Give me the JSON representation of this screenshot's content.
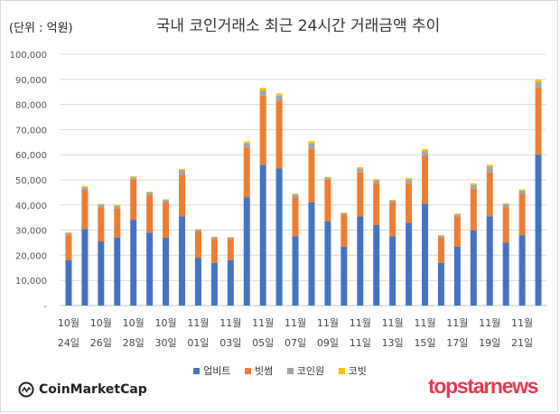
{
  "header": {
    "unit_label": "(단위 : 억원)",
    "title": "국내 코인거래소 최근 24시간 거래금액 추이"
  },
  "chart_data": {
    "type": "bar",
    "stacked": true,
    "title": "국내 코인거래소 최근 24시간 거래금액 추이",
    "unit": "(단위 : 억원)",
    "ylim": [
      0,
      100000
    ],
    "y_ticks": [
      "-",
      "10,000",
      "20,000",
      "30,000",
      "40,000",
      "50,000",
      "60,000",
      "70,000",
      "80,000",
      "90,000",
      "100,000"
    ],
    "categories": [
      "10월 24일",
      "10월 25일",
      "10월 26일",
      "10월 27일",
      "10월 28일",
      "10월 29일",
      "10월 30일",
      "10월 31일",
      "11월 01일",
      "11월 02일",
      "11월 03일",
      "11월 04일",
      "11월 05일",
      "11월 06일",
      "11월 07일",
      "11월 08일",
      "11월 09일",
      "11월 10일",
      "11월 11일",
      "11월 12일",
      "11월 13일",
      "11월 14일",
      "11월 15일",
      "11월 16일",
      "11월 17일",
      "11월 18일",
      "11월 19일",
      "11월 20일",
      "11월 21일",
      "11월 22일"
    ],
    "x_labels": [
      {
        "month": "10월",
        "day": "24일"
      },
      {
        "month": "10월",
        "day": "26일"
      },
      {
        "month": "10월",
        "day": "28일"
      },
      {
        "month": "10월",
        "day": "30일"
      },
      {
        "month": "11월",
        "day": "01일"
      },
      {
        "month": "11월",
        "day": "03일"
      },
      {
        "month": "11월",
        "day": "05일"
      },
      {
        "month": "11월",
        "day": "07일"
      },
      {
        "month": "11월",
        "day": "09일"
      },
      {
        "month": "11월",
        "day": "11일"
      },
      {
        "month": "11월",
        "day": "13일"
      },
      {
        "month": "11월",
        "day": "15일"
      },
      {
        "month": "11월",
        "day": "17일"
      },
      {
        "month": "11월",
        "day": "19일"
      },
      {
        "month": "11월",
        "day": "21일"
      }
    ],
    "series": [
      {
        "name": "업비트",
        "color": "#4472c4",
        "values": [
          18000,
          30500,
          25500,
          27000,
          34000,
          29000,
          27000,
          35500,
          19000,
          17000,
          18000,
          43000,
          56000,
          54500,
          27500,
          41000,
          33500,
          23500,
          35500,
          32000,
          27500,
          33000,
          40500,
          17000,
          23500,
          30000,
          35500,
          25000,
          28000,
          60000
        ]
      },
      {
        "name": "빗썸",
        "color": "#ed7d31",
        "values": [
          10000,
          15500,
          13500,
          11500,
          16000,
          15000,
          14000,
          16500,
          10500,
          9500,
          8500,
          20000,
          27500,
          27000,
          15500,
          21500,
          16500,
          12500,
          17500,
          16500,
          13500,
          15500,
          19000,
          10000,
          12000,
          16500,
          17500,
          14000,
          16500,
          26500
        ]
      },
      {
        "name": "코인원",
        "color": "#a5a5a5",
        "values": [
          800,
          1000,
          1100,
          1200,
          1000,
          1000,
          1000,
          1800,
          700,
          700,
          600,
          1700,
          2200,
          2100,
          1200,
          2200,
          900,
          800,
          1600,
          1400,
          800,
          1700,
          2000,
          700,
          800,
          1600,
          2300,
          1400,
          1300,
          2500
        ]
      },
      {
        "name": "코빗",
        "color": "#ffc000",
        "values": [
          300,
          500,
          300,
          400,
          400,
          300,
          300,
          500,
          200,
          200,
          200,
          600,
          900,
          800,
          300,
          700,
          300,
          200,
          500,
          400,
          300,
          500,
          700,
          300,
          300,
          500,
          700,
          300,
          400,
          900
        ]
      }
    ]
  },
  "legend": {
    "items": [
      {
        "label": "업비트",
        "color": "#4472c4"
      },
      {
        "label": "빗썸",
        "color": "#ed7d31"
      },
      {
        "label": "코인원",
        "color": "#a5a5a5"
      },
      {
        "label": "코빗",
        "color": "#ffc000"
      }
    ]
  },
  "footer": {
    "left_logo": "CoinMarketCap",
    "right_logo": "topstarnews"
  }
}
